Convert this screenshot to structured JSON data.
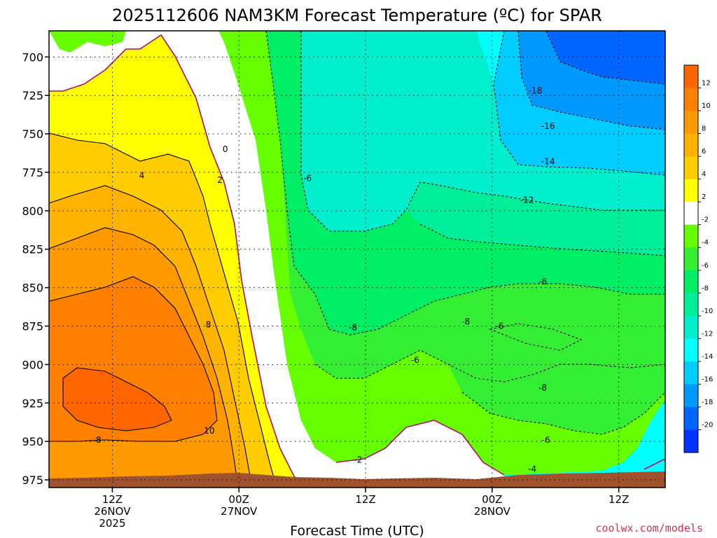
{
  "chart_data": {
    "type": "heatmap",
    "title": "2025112606 NAM3KM Forecast Temperature (ºC) for SPAR",
    "xlabel": "Forecast Time (UTC)",
    "ylabel": "",
    "y_axis": {
      "unit": "hPa",
      "ticks": [
        700,
        725,
        750,
        775,
        800,
        825,
        850,
        875,
        900,
        925,
        950,
        975
      ],
      "range": [
        683,
        980
      ]
    },
    "x_axis": {
      "range_hours": [
        0,
        54
      ],
      "ticks": [
        {
          "hour": 6,
          "lines": [
            "12Z",
            "26NOV",
            "2025"
          ]
        },
        {
          "hour": 18,
          "lines": [
            "00Z",
            "27NOV"
          ]
        },
        {
          "hour": 30,
          "lines": [
            "12Z"
          ]
        },
        {
          "hour": 42,
          "lines": [
            "00Z",
            "28NOV"
          ]
        },
        {
          "hour": 54,
          "lines": [
            "12Z"
          ]
        }
      ]
    },
    "colorbar": {
      "levels": [
        "12",
        "10",
        "8",
        "6",
        "4",
        "2",
        "-2",
        "-4",
        "-6",
        "-8",
        "-10",
        "-12",
        "-14",
        "-16",
        "-18",
        "-20"
      ],
      "colors": [
        "#ff6600",
        "#ff8000",
        "#ff9900",
        "#ffb200",
        "#ffcc00",
        "#ffff00",
        "#ffffff",
        "#66ff00",
        "#33ee33",
        "#00ee66",
        "#00ee99",
        "#00eecc",
        "#00ffff",
        "#00ccff",
        "#0099ff",
        "#0066ff",
        "#0033ff"
      ]
    },
    "contour_labels": [
      {
        "text": "0",
        "hour": 16.7,
        "hpa": 760
      },
      {
        "text": "2",
        "hour": 16.2,
        "hpa": 780
      },
      {
        "text": "4",
        "hour": 8.8,
        "hpa": 777
      },
      {
        "text": "8",
        "hour": 15.1,
        "hpa": 874
      },
      {
        "text": "10",
        "hour": 15.2,
        "hpa": 943
      },
      {
        "text": "8",
        "hour": 4.7,
        "hpa": 949
      },
      {
        "text": "-6",
        "hour": 24.5,
        "hpa": 779
      },
      {
        "text": "-8",
        "hour": 28.8,
        "hpa": 876
      },
      {
        "text": "-2",
        "hour": 29.3,
        "hpa": 962
      },
      {
        "text": "-6",
        "hour": 34.7,
        "hpa": 897
      },
      {
        "text": "-8",
        "hour": 39.5,
        "hpa": 872
      },
      {
        "text": "-6",
        "hour": 42.7,
        "hpa": 875
      },
      {
        "text": "-18",
        "hour": 46.1,
        "hpa": 722
      },
      {
        "text": "-16",
        "hour": 47.3,
        "hpa": 745
      },
      {
        "text": "-14",
        "hour": 47.3,
        "hpa": 768
      },
      {
        "text": "-12",
        "hour": 45.3,
        "hpa": 793
      },
      {
        "text": "-8",
        "hour": 46.8,
        "hpa": 846
      },
      {
        "text": "-8",
        "hour": 46.8,
        "hpa": 915
      },
      {
        "text": "-6",
        "hour": 47.1,
        "hpa": 949
      },
      {
        "text": "-4",
        "hour": 45.8,
        "hpa": 968
      }
    ],
    "terrain_color": "#a0522d"
  },
  "credit": "coolwx.com/models",
  "colors": {
    "credit": "#d9324a",
    "freezing_line": "#b0106a"
  }
}
